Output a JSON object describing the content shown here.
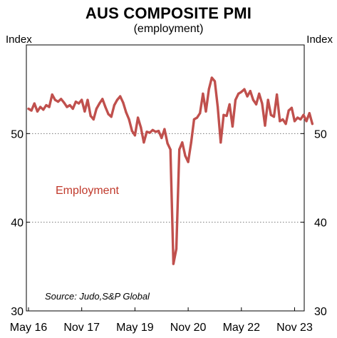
{
  "chart_data": {
    "type": "line",
    "title": "AUS COMPOSITE PMI",
    "subtitle": "(employment)",
    "ylabel_left": "Index",
    "ylabel_right": "Index",
    "ylim": [
      30,
      60
    ],
    "yticks": [
      30,
      40,
      50
    ],
    "x_tick_labels": [
      "May 16",
      "Nov 17",
      "May 19",
      "Nov 20",
      "May 22",
      "Nov 23"
    ],
    "x_tick_index": [
      0,
      18,
      36,
      54,
      72,
      90
    ],
    "grid": "dotted horizontal at 40 and 50",
    "series_color": "#c0504d",
    "annotation": "Employment",
    "source": "Source: Judo,S&P Global",
    "series": [
      {
        "values": [
          52.8,
          52.6,
          53.4,
          52.5,
          53.0,
          52.7,
          53.2,
          53.0,
          54.4,
          53.8,
          53.6,
          53.9,
          53.5,
          53.0,
          53.2,
          52.8,
          53.6,
          53.4,
          53.8,
          52.5,
          53.8,
          52.0,
          51.6,
          52.8,
          53.4,
          53.9,
          53.0,
          52.2,
          51.9,
          53.2,
          53.8,
          54.2,
          53.5,
          52.4,
          51.6,
          50.3,
          49.8,
          51.8,
          50.7,
          49.0,
          50.2,
          50.1,
          50.4,
          50.2,
          50.3,
          49.5,
          50.5,
          48.9,
          48.2,
          35.3,
          37.0,
          48.2,
          49.0,
          47.5,
          46.8,
          49.0,
          51.6,
          51.8,
          52.3,
          54.5,
          52.5,
          55.0,
          56.3,
          55.9,
          53.0,
          49.0,
          52.1,
          52.0,
          53.3,
          50.8,
          53.8,
          54.5,
          54.7,
          55.0,
          54.2,
          54.8,
          53.8,
          53.3,
          54.5,
          53.4,
          50.9,
          53.8,
          52.1,
          51.9,
          54.4,
          51.4,
          51.6,
          51.1,
          52.6,
          52.9,
          51.4,
          51.8,
          51.6,
          52.1,
          51.4,
          52.3,
          51.1
        ]
      }
    ]
  }
}
